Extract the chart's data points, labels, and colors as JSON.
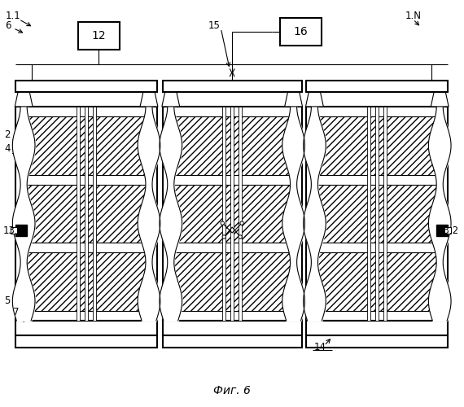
{
  "title": "Фиг. 6",
  "bg_color": "#ffffff",
  "fig_width": 5.7,
  "fig_height": 5.0,
  "dpi": 100
}
